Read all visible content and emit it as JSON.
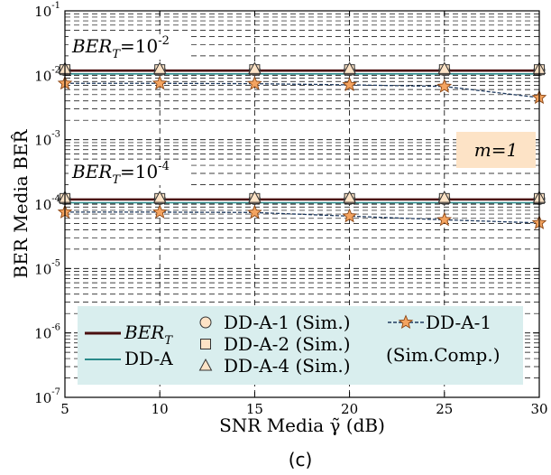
{
  "chart_data": {
    "type": "line",
    "title": "",
    "panel_label": "(c)",
    "xlabel": "SNR Media γ̃ (dB)",
    "ylabel": "BER Media BER̂",
    "x": [
      5,
      10,
      15,
      20,
      25,
      30
    ],
    "x_ticks": [
      "5",
      "10",
      "15",
      "20",
      "25",
      "30"
    ],
    "y_scale": "log",
    "ylim": [
      1e-07,
      0.1
    ],
    "y_ticks": [
      {
        "value": 1e-07,
        "base": "10",
        "exp": "-7"
      },
      {
        "value": 1e-06,
        "base": "10",
        "exp": "-6"
      },
      {
        "value": 1e-05,
        "base": "10",
        "exp": "-5"
      },
      {
        "value": 0.0001,
        "base": "10",
        "exp": "-4"
      },
      {
        "value": 0.001,
        "base": "10",
        "exp": "-3"
      },
      {
        "value": 0.01,
        "base": "10",
        "exp": "-2"
      },
      {
        "value": 0.1,
        "base": "10",
        "exp": "-1"
      }
    ],
    "grid": true,
    "series": [
      {
        "name": "BER_T",
        "style": "solid",
        "color": "#4a0f0f",
        "marker": "none",
        "group": "1e-2",
        "values": [
          0.0118,
          0.0118,
          0.0118,
          0.0118,
          0.0118,
          0.0118
        ]
      },
      {
        "name": "DD-A",
        "style": "solid",
        "color": "#2a8a8a",
        "marker": "none",
        "group": "1e-2",
        "values": [
          0.0105,
          0.0105,
          0.0105,
          0.0105,
          0.0105,
          0.0105
        ]
      },
      {
        "name": "DD-A-1 (Sim.)",
        "style": "none",
        "color": "#fde3c6",
        "marker": "circle",
        "group": "1e-2",
        "values": [
          0.012,
          0.012,
          0.012,
          0.012,
          0.012,
          0.012
        ]
      },
      {
        "name": "DD-A-2 (Sim.)",
        "style": "none",
        "color": "#fde3c6",
        "marker": "square",
        "group": "1e-2",
        "values": [
          0.0122,
          0.0122,
          0.0122,
          0.0122,
          0.0122,
          0.0122
        ]
      },
      {
        "name": "DD-A-4 (Sim.)",
        "style": "none",
        "color": "#fde3c6",
        "marker": "triangle",
        "group": "1e-2",
        "values": [
          0.0125,
          0.0125,
          0.0125,
          0.0125,
          0.0125,
          0.0125
        ]
      },
      {
        "name": "DD-A-1 (Sim.Comp.)",
        "style": "dashed",
        "color": "#1f3a5f",
        "marker": "star",
        "group": "1e-2",
        "values": [
          0.0075,
          0.0075,
          0.0074,
          0.0071,
          0.0067,
          0.0045
        ]
      },
      {
        "name": "BER_T",
        "style": "solid",
        "color": "#4a0f0f",
        "marker": "none",
        "group": "1e-4",
        "values": [
          0.000118,
          0.000118,
          0.000118,
          0.000118,
          0.000118,
          0.000118
        ]
      },
      {
        "name": "DD-A",
        "style": "solid",
        "color": "#2a8a8a",
        "marker": "none",
        "group": "1e-4",
        "values": [
          0.000105,
          0.000105,
          0.000105,
          0.000105,
          0.000105,
          0.000105
        ]
      },
      {
        "name": "DD-A-1 (Sim.)",
        "style": "none",
        "color": "#fde3c6",
        "marker": "circle",
        "group": "1e-4",
        "values": [
          0.00012,
          0.00012,
          0.00012,
          0.00012,
          0.00012,
          0.00012
        ]
      },
      {
        "name": "DD-A-2 (Sim.)",
        "style": "none",
        "color": "#fde3c6",
        "marker": "square",
        "group": "1e-4",
        "values": [
          0.000122,
          0.000122,
          0.000122,
          0.000122,
          0.000122,
          0.000122
        ]
      },
      {
        "name": "DD-A-4 (Sim.)",
        "style": "none",
        "color": "#fde3c6",
        "marker": "triangle",
        "group": "1e-4",
        "values": [
          0.000125,
          0.000125,
          0.000125,
          0.000125,
          0.000125,
          0.000125
        ]
      },
      {
        "name": "DD-A-1 (Sim.Comp.)",
        "style": "dashed",
        "color": "#1f3a5f",
        "marker": "star",
        "group": "1e-4",
        "values": [
          7.5e-05,
          7.5e-05,
          7.4e-05,
          6.5e-05,
          5.7e-05,
          5.1e-05
        ]
      }
    ],
    "annotations": [
      {
        "id": "bert-high",
        "base": "BER",
        "sub": "T",
        "eq": "=10",
        "exp": "-2"
      },
      {
        "id": "bert-low",
        "base": "BER",
        "sub": "T",
        "eq": "=10",
        "exp": "-4"
      },
      {
        "id": "m-box",
        "text": "m=1",
        "fill": "#fde3c6"
      }
    ],
    "legend": {
      "placement": "bottom",
      "background": "#d9eeee",
      "entries": [
        {
          "label_base": "BER",
          "label_sub": "T",
          "kind": "line",
          "color": "#4a0f0f"
        },
        {
          "label": "DD-A",
          "kind": "line",
          "color": "#2a8a8a"
        },
        {
          "label": "DD-A-1 (Sim.)",
          "kind": "marker",
          "marker": "circle"
        },
        {
          "label": "DD-A-2 (Sim.)",
          "kind": "marker",
          "marker": "square"
        },
        {
          "label": "DD-A-4 (Sim.)",
          "kind": "marker",
          "marker": "triangle"
        },
        {
          "label_line1": "DD-A-1",
          "label_line2": "(Sim.Comp.)",
          "kind": "dashed-star",
          "color": "#1f3a5f"
        }
      ]
    }
  }
}
